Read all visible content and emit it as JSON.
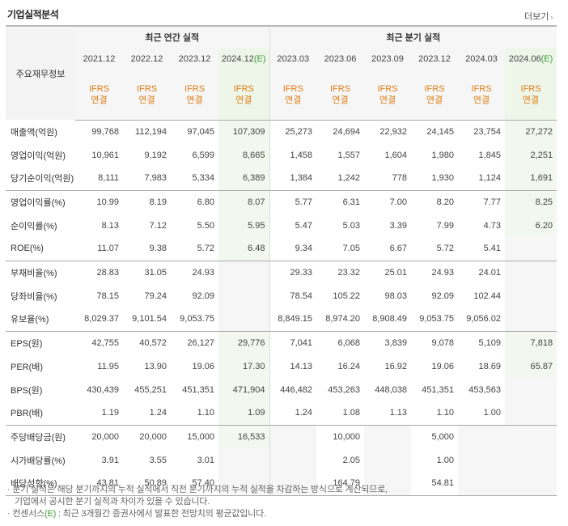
{
  "header": {
    "title": "기업실적분석",
    "more_label": "더보기"
  },
  "table": {
    "corner_label": "주요재무정보",
    "annual_group": "최근 연간 실적",
    "quarter_group": "최근 분기 실적",
    "annual_periods": [
      "2021.12",
      "2022.12",
      "2023.12",
      "2024.12"
    ],
    "quarter_periods": [
      "2023.03",
      "2023.06",
      "2023.09",
      "2023.12",
      "2024.03",
      "2024.06"
    ],
    "estimate_mark": "(E)",
    "basis_top": "IFRS",
    "basis_bottom": "연결",
    "rows": [
      {
        "label": "매출액(억원)",
        "values": [
          "99,768",
          "112,194",
          "97,045",
          "107,309",
          "25,273",
          "24,694",
          "22,932",
          "24,145",
          "23,754",
          "27,272"
        ]
      },
      {
        "label": "영업이익(억원)",
        "values": [
          "10,961",
          "9,192",
          "6,599",
          "8,665",
          "1,458",
          "1,557",
          "1,604",
          "1,980",
          "1,845",
          "2,251"
        ]
      },
      {
        "label": "당기순이익(억원)",
        "values": [
          "8,111",
          "7,983",
          "5,334",
          "6,389",
          "1,384",
          "1,242",
          "778",
          "1,930",
          "1,124",
          "1,691"
        ]
      },
      {
        "label": "영업이익률(%)",
        "values": [
          "10.99",
          "8.19",
          "6.80",
          "8.07",
          "5.77",
          "6.31",
          "7.00",
          "8.20",
          "7.77",
          "8.25"
        ]
      },
      {
        "label": "순이익률(%)",
        "values": [
          "8.13",
          "7.12",
          "5.50",
          "5.95",
          "5.47",
          "5.03",
          "3.39",
          "7.99",
          "4.73",
          "6.20"
        ]
      },
      {
        "label": "ROE(%)",
        "values": [
          "11.07",
          "9.38",
          "5.72",
          "6.48",
          "9.34",
          "7.05",
          "6.67",
          "5.72",
          "5.41",
          ""
        ]
      },
      {
        "label": "부채비율(%)",
        "values": [
          "28.83",
          "31.05",
          "24.93",
          "",
          "29.33",
          "23.32",
          "25.01",
          "24.93",
          "24.01",
          ""
        ]
      },
      {
        "label": "당좌비율(%)",
        "values": [
          "78.15",
          "79.24",
          "92.09",
          "",
          "78.54",
          "105.22",
          "98.03",
          "92.09",
          "102.44",
          ""
        ]
      },
      {
        "label": "유보율(%)",
        "values": [
          "8,029.37",
          "9,101.54",
          "9,053.75",
          "",
          "8,849.15",
          "8,974.20",
          "8,908.49",
          "9,053.75",
          "9,056.02",
          ""
        ]
      },
      {
        "label": "EPS(원)",
        "values": [
          "42,755",
          "40,572",
          "26,127",
          "29,776",
          "7,041",
          "6,068",
          "3,839",
          "9,078",
          "5,109",
          "7,818"
        ]
      },
      {
        "label": "PER(배)",
        "values": [
          "11.95",
          "13.90",
          "19.06",
          "17.30",
          "14.13",
          "16.24",
          "16.92",
          "19.06",
          "18.69",
          "65.87"
        ]
      },
      {
        "label": "BPS(원)",
        "values": [
          "430,439",
          "455,251",
          "451,351",
          "471,904",
          "446,482",
          "453,263",
          "448,038",
          "451,351",
          "453,563",
          ""
        ]
      },
      {
        "label": "PBR(배)",
        "values": [
          "1.19",
          "1.24",
          "1.10",
          "1.09",
          "1.24",
          "1.08",
          "1.13",
          "1.10",
          "1.00",
          ""
        ]
      },
      {
        "label": "주당배당금(원)",
        "values": [
          "20,000",
          "20,000",
          "15,000",
          "16,533",
          "",
          "10,000",
          "",
          "5,000",
          "",
          ""
        ]
      },
      {
        "label": "시가배당률(%)",
        "values": [
          "3.91",
          "3.55",
          "3.01",
          "",
          "",
          "2.05",
          "",
          "1.00",
          "",
          ""
        ]
      },
      {
        "label": "배당성향(%)",
        "values": [
          "43.81",
          "50.89",
          "57.40",
          "",
          "",
          "164.79",
          "",
          "54.81",
          "",
          ""
        ]
      }
    ]
  },
  "notes": {
    "line1": "· 분기 실적은 해당 분기까지의 누적 실적에서 직전 분기까지의 누적 실적을 차감하는 방식으로 계산되므로,",
    "line2": "기업에서 공시한 분기 실적과 차이가 있을 수 있습니다.",
    "line3_prefix": "· 컨센서스",
    "line3_mark": "(E)",
    "line3_suffix": " : 최근 3개월간 증권사에서 발표한 전망치의 평균값입니다."
  },
  "colors": {
    "basis_text": "#e07a10",
    "estimate_text": "#3f9d3b",
    "projection_bg": "#edf6e9",
    "header_bg": "#f6f6f6"
  }
}
